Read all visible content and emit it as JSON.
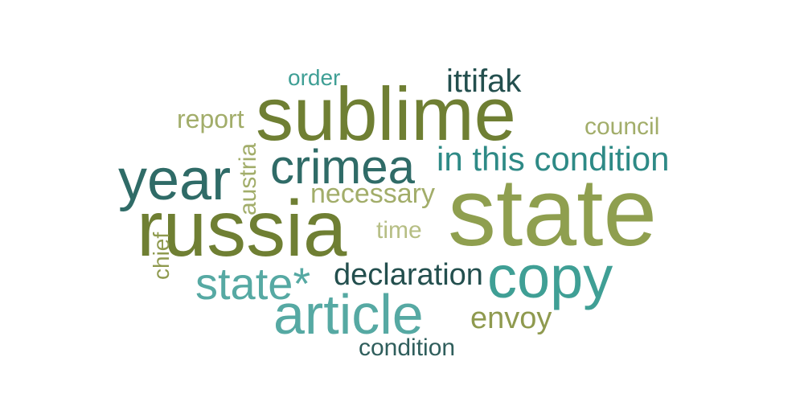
{
  "words": [
    {
      "text": "state",
      "color": "#8f9f4f"
    },
    {
      "text": "sublime",
      "color": "#6f7f33"
    },
    {
      "text": "russia",
      "color": "#6f7f33"
    },
    {
      "text": "copy",
      "color": "#3f9f95"
    },
    {
      "text": "article",
      "color": "#56a9a3"
    },
    {
      "text": "year",
      "color": "#2f6b67"
    },
    {
      "text": "crimea",
      "color": "#2f6b67"
    },
    {
      "text": "in this condition",
      "color": "#2e8a86"
    },
    {
      "text": "state*",
      "color": "#56a9a3"
    },
    {
      "text": "declaration",
      "color": "#234f4e"
    },
    {
      "text": "ittifak",
      "color": "#234f4e"
    },
    {
      "text": "necessary",
      "color": "#a2ad6a"
    },
    {
      "text": "envoy",
      "color": "#8f9a4f"
    },
    {
      "text": "condition",
      "color": "#2f5e5c"
    },
    {
      "text": "report",
      "color": "#a2ad6a"
    },
    {
      "text": "council",
      "color": "#a2ad6a"
    },
    {
      "text": "order",
      "color": "#3f9f95"
    },
    {
      "text": "time",
      "color": "#b6be84"
    },
    {
      "text": "austria",
      "color": "#a2ad6a"
    },
    {
      "text": "chief",
      "color": "#8f9a4f"
    }
  ]
}
